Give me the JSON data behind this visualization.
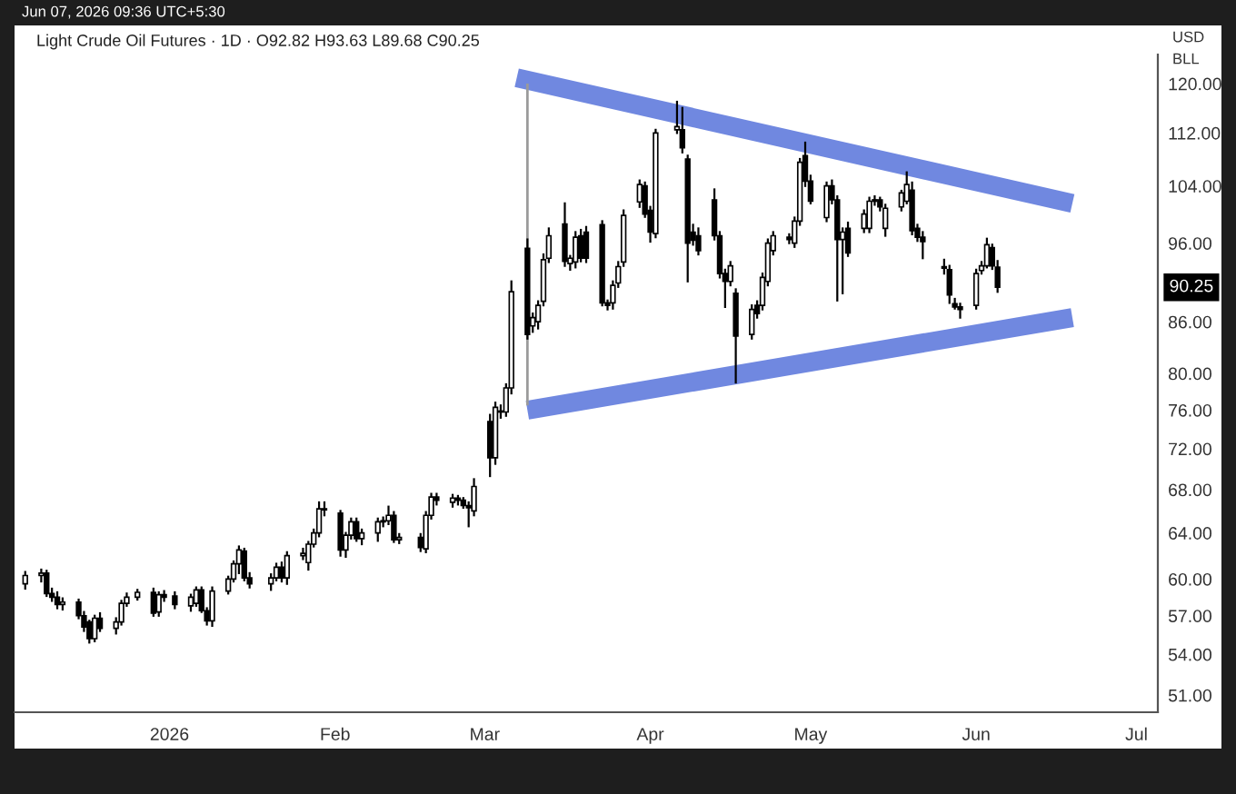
{
  "chart_data": {
    "type": "candlestick",
    "title": "Light Crude Oil Futures · 1D · O92.82 H93.63 L89.68 C90.25",
    "annotations": [
      "Jun 07, 2026 09:36 UTC+5:30",
      "USD",
      "BLL",
      "90.25"
    ],
    "x": [
      "2025-12-05",
      "2025-12-08",
      "2025-12-09",
      "2025-12-10",
      "2025-12-11",
      "2025-12-12",
      "2025-12-15",
      "2025-12-16",
      "2025-12-17",
      "2025-12-18",
      "2025-12-19",
      "2025-12-22",
      "2025-12-23",
      "2025-12-24",
      "2025-12-26",
      "2025-12-29",
      "2025-12-30",
      "2025-12-31",
      "2026-01-02",
      "2026-01-05",
      "2026-01-06",
      "2026-01-07",
      "2026-01-08",
      "2026-01-09",
      "2026-01-12",
      "2026-01-13",
      "2026-01-14",
      "2026-01-15",
      "2026-01-16",
      "2026-01-20",
      "2026-01-21",
      "2026-01-22",
      "2026-01-23",
      "2026-01-26",
      "2026-01-27",
      "2026-01-28",
      "2026-01-29",
      "2026-01-30",
      "2026-02-02",
      "2026-02-03",
      "2026-02-04",
      "2026-02-05",
      "2026-02-06",
      "2026-02-09",
      "2026-02-10",
      "2026-02-11",
      "2026-02-12",
      "2026-02-13",
      "2026-02-17",
      "2026-02-18",
      "2026-02-19",
      "2026-02-20",
      "2026-02-23",
      "2026-02-24",
      "2026-02-25",
      "2026-02-26",
      "2026-02-27",
      "2026-03-02",
      "2026-03-03",
      "2026-03-04",
      "2026-03-05",
      "2026-03-06",
      "2026-03-09",
      "2026-03-10",
      "2026-03-11",
      "2026-03-12",
      "2026-03-13",
      "2026-03-16",
      "2026-03-17",
      "2026-03-18",
      "2026-03-19",
      "2026-03-20",
      "2026-03-23",
      "2026-03-24",
      "2026-03-25",
      "2026-03-26",
      "2026-03-27",
      "2026-03-30",
      "2026-03-31",
      "2026-04-01",
      "2026-04-02",
      "2026-04-06",
      "2026-04-07",
      "2026-04-08",
      "2026-04-09",
      "2026-04-10",
      "2026-04-13",
      "2026-04-14",
      "2026-04-15",
      "2026-04-16",
      "2026-04-17",
      "2026-04-20",
      "2026-04-21",
      "2026-04-22",
      "2026-04-23",
      "2026-04-24",
      "2026-04-27",
      "2026-04-28",
      "2026-04-29",
      "2026-04-30",
      "2026-05-01",
      "2026-05-04",
      "2026-05-05",
      "2026-05-06",
      "2026-05-07",
      "2026-05-08",
      "2026-05-11",
      "2026-05-12",
      "2026-05-13",
      "2026-05-14",
      "2026-05-15",
      "2026-05-18",
      "2026-05-19",
      "2026-05-20",
      "2026-05-21",
      "2026-05-22",
      "2026-05-26",
      "2026-05-27",
      "2026-05-28",
      "2026-05-29",
      "2026-06-01",
      "2026-06-02",
      "2026-06-03",
      "2026-06-04",
      "2026-06-05"
    ],
    "ohlc": [
      [
        59.6,
        60.6,
        59.2,
        60.3
      ],
      [
        60.3,
        60.8,
        59.8,
        60.5
      ],
      [
        60.5,
        60.7,
        58.6,
        58.8
      ],
      [
        58.8,
        59.2,
        58.2,
        58.5
      ],
      [
        58.5,
        58.9,
        57.6,
        57.9
      ],
      [
        57.9,
        58.4,
        57.5,
        58.1
      ],
      [
        58.1,
        58.3,
        56.8,
        57.0
      ],
      [
        57.0,
        57.3,
        55.8,
        56.1
      ],
      [
        56.5,
        56.6,
        54.9,
        55.2
      ],
      [
        55.2,
        57.0,
        55.0,
        56.8
      ],
      [
        56.8,
        57.2,
        55.8,
        56.0
      ],
      [
        56.0,
        56.8,
        55.6,
        56.5
      ],
      [
        56.5,
        58.2,
        56.3,
        58.0
      ],
      [
        58.0,
        58.8,
        57.8,
        58.5
      ],
      [
        58.5,
        59.1,
        58.3,
        58.9
      ],
      [
        58.9,
        59.2,
        57.0,
        57.2
      ],
      [
        57.3,
        58.9,
        57.0,
        58.7
      ],
      [
        58.7,
        59.0,
        58.2,
        58.5
      ],
      [
        58.6,
        58.9,
        57.6,
        57.9
      ],
      [
        57.8,
        58.7,
        57.4,
        58.5
      ],
      [
        58.0,
        59.3,
        57.8,
        59.1
      ],
      [
        59.1,
        59.3,
        57.3,
        57.4
      ],
      [
        57.4,
        57.6,
        56.3,
        56.6
      ],
      [
        56.6,
        59.3,
        56.2,
        59.0
      ],
      [
        59.0,
        60.2,
        58.8,
        60.0
      ],
      [
        60.0,
        61.5,
        59.8,
        61.3
      ],
      [
        61.3,
        62.8,
        60.5,
        62.5
      ],
      [
        62.4,
        62.6,
        59.9,
        60.1
      ],
      [
        60.1,
        60.5,
        59.3,
        59.6
      ],
      [
        59.6,
        60.4,
        59.1,
        60.1
      ],
      [
        60.1,
        61.3,
        59.9,
        61.0
      ],
      [
        61.0,
        61.4,
        59.8,
        60.1
      ],
      [
        60.1,
        62.3,
        59.6,
        62.0
      ],
      [
        62.0,
        62.6,
        61.7,
        62.2
      ],
      [
        61.4,
        63.2,
        60.8,
        63.0
      ],
      [
        63.0,
        64.3,
        62.8,
        64.0
      ],
      [
        64.0,
        66.8,
        63.7,
        66.2
      ],
      [
        66.2,
        66.8,
        65.6,
        66.1
      ],
      [
        65.8,
        66.0,
        62.0,
        62.5
      ],
      [
        62.5,
        64.0,
        61.9,
        63.8
      ],
      [
        63.8,
        65.3,
        63.5,
        65.0
      ],
      [
        65.0,
        65.3,
        63.3,
        63.5
      ],
      [
        63.5,
        64.3,
        63.0,
        64.0
      ],
      [
        64.0,
        65.3,
        63.3,
        65.0
      ],
      [
        65.0,
        65.4,
        64.6,
        65.1
      ],
      [
        65.1,
        66.4,
        64.8,
        65.6
      ],
      [
        65.6,
        65.9,
        63.2,
        63.4
      ],
      [
        63.4,
        63.9,
        63.1,
        63.6
      ],
      [
        63.6,
        63.9,
        62.4,
        62.7
      ],
      [
        62.6,
        65.9,
        62.3,
        65.6
      ],
      [
        65.6,
        67.6,
        65.3,
        67.3
      ],
      [
        67.3,
        67.6,
        66.6,
        67.0
      ],
      [
        66.8,
        67.5,
        66.4,
        67.2
      ],
      [
        67.2,
        67.4,
        66.6,
        67.0
      ],
      [
        67.0,
        67.2,
        66.3,
        66.5
      ],
      [
        66.5,
        66.8,
        64.6,
        66.3
      ],
      [
        66.0,
        69.0,
        65.6,
        68.3
      ],
      [
        74.8,
        75.5,
        69.3,
        71.1
      ],
      [
        71.1,
        76.8,
        70.5,
        76.3
      ],
      [
        75.8,
        76.5,
        75.2,
        75.9
      ],
      [
        75.8,
        78.8,
        75.4,
        78.4
      ],
      [
        78.4,
        91.0,
        77.8,
        89.7
      ],
      [
        95.3,
        96.5,
        84.0,
        84.5
      ],
      [
        85.5,
        87.0,
        84.8,
        86.5
      ],
      [
        86.0,
        88.5,
        85.2,
        88.0
      ],
      [
        88.5,
        94.5,
        88.0,
        93.8
      ],
      [
        94.0,
        98.0,
        93.5,
        97.0
      ],
      [
        98.6,
        101.5,
        93.0,
        93.6
      ],
      [
        93.3,
        94.3,
        92.5,
        94.0
      ],
      [
        93.5,
        97.5,
        92.8,
        96.8
      ],
      [
        97.0,
        97.8,
        93.6,
        94.0
      ],
      [
        97.5,
        98.2,
        93.5,
        94.0
      ],
      [
        98.5,
        99.0,
        88.0,
        88.3
      ],
      [
        88.3,
        88.6,
        87.5,
        88.0
      ],
      [
        88.3,
        91.0,
        87.6,
        90.5
      ],
      [
        90.8,
        93.5,
        90.3,
        92.9
      ],
      [
        93.5,
        100.5,
        93.0,
        99.8
      ],
      [
        101.7,
        104.8,
        101.0,
        104.2
      ],
      [
        104.0,
        104.5,
        99.6,
        100.0
      ],
      [
        100.5,
        101.0,
        96.2,
        97.5
      ],
      [
        97.3,
        112.5,
        96.8,
        112.0
      ],
      [
        112.5,
        117.0,
        112.0,
        113.0
      ],
      [
        112.5,
        116.0,
        109.0,
        109.7
      ],
      [
        108.0,
        108.5,
        91.0,
        96.0
      ],
      [
        97.5,
        98.5,
        95.8,
        96.4
      ],
      [
        97.0,
        98.0,
        94.5,
        95.0
      ],
      [
        102.0,
        103.5,
        96.5,
        97.0
      ],
      [
        97.0,
        97.5,
        91.5,
        92.0
      ],
      [
        92.0,
        92.5,
        87.8,
        91.0
      ],
      [
        91.0,
        93.5,
        90.5,
        93.0
      ],
      [
        89.5,
        90.0,
        79.0,
        84.3
      ],
      [
        84.5,
        88.0,
        84.0,
        87.5
      ],
      [
        88.0,
        88.5,
        86.5,
        87.0
      ],
      [
        88.0,
        92.0,
        87.5,
        91.5
      ],
      [
        91.0,
        96.5,
        90.5,
        96.0
      ],
      [
        95.0,
        97.5,
        94.5,
        97.0
      ],
      [
        96.8,
        97.2,
        96.0,
        96.5
      ],
      [
        96.0,
        99.5,
        95.5,
        99.0
      ],
      [
        99.0,
        108.0,
        98.5,
        107.5
      ],
      [
        108.5,
        110.5,
        104.0,
        104.7
      ],
      [
        104.7,
        105.5,
        101.5,
        101.8
      ],
      [
        99.5,
        104.5,
        99.0,
        104.0
      ],
      [
        104.0,
        104.8,
        101.5,
        102.0
      ],
      [
        102.0,
        102.5,
        88.6,
        96.5
      ],
      [
        96.5,
        98.0,
        89.5,
        97.5
      ],
      [
        98.0,
        98.8,
        94.3,
        94.7
      ],
      [
        98.0,
        100.5,
        97.5,
        100.0
      ],
      [
        98.0,
        102.3,
        97.5,
        101.8
      ],
      [
        101.8,
        102.5,
        101.3,
        102.0
      ],
      [
        102.0,
        102.3,
        100.5,
        101.0
      ],
      [
        98.0,
        101.3,
        97.0,
        100.8
      ],
      [
        101.0,
        103.3,
        100.5,
        103.0
      ],
      [
        101.8,
        106.0,
        101.5,
        104.2
      ],
      [
        103.4,
        104.5,
        97.2,
        97.7
      ],
      [
        98.0,
        98.5,
        96.3,
        96.8
      ],
      [
        96.8,
        97.5,
        94.0,
        96.2
      ],
      [
        92.9,
        93.8,
        92.0,
        92.7
      ],
      [
        92.5,
        93.0,
        88.3,
        89.3
      ],
      [
        88.2,
        88.8,
        87.6,
        87.8
      ],
      [
        87.8,
        88.2,
        86.5,
        87.5
      ],
      [
        88.0,
        92.5,
        87.6,
        92.0
      ],
      [
        92.4,
        93.5,
        92.0,
        93.0
      ],
      [
        93.0,
        96.6,
        92.8,
        95.8
      ],
      [
        95.4,
        95.8,
        92.6,
        93.0
      ],
      [
        92.82,
        93.63,
        89.68,
        90.25
      ]
    ],
    "series": [
      {
        "type": "line",
        "color": "#7088e0",
        "x": [
          "2026-03-07",
          "2026-06-19"
        ],
        "values": [
          121,
          101.5
        ]
      },
      {
        "type": "line",
        "color": "#7088e0",
        "x": [
          "2026-03-09",
          "2026-06-19"
        ],
        "values": [
          76.0,
          86.5
        ]
      },
      {
        "type": "line",
        "color": "#9a9a9a",
        "x": [
          "2026-03-09",
          "2026-03-09"
        ],
        "values": [
          120,
          76.5
        ]
      }
    ],
    "log": "y",
    "xlim": [
      "2025-12-03",
      "2026-07-05"
    ],
    "xticks": [
      {
        "value": "2026-01-01",
        "label": "2026"
      },
      {
        "value": "2026-02-01",
        "label": "Feb"
      },
      {
        "value": "2026-03-01",
        "label": "Mar"
      },
      {
        "value": "2026-04-01",
        "label": "Apr"
      },
      {
        "value": "2026-05-01",
        "label": "May"
      },
      {
        "value": "2026-06-01",
        "label": "Jun"
      },
      {
        "value": "2026-07-01",
        "label": "Jul"
      }
    ],
    "ylim": [
      49.8,
      125
    ],
    "yticks": [
      {
        "value": 51,
        "label": "51.00"
      },
      {
        "value": 54,
        "label": "54.00"
      },
      {
        "value": 57,
        "label": "57.00"
      },
      {
        "value": 60,
        "label": "60.00"
      },
      {
        "value": 64,
        "label": "64.00"
      },
      {
        "value": 68,
        "label": "68.00"
      },
      {
        "value": 72,
        "label": "72.00"
      },
      {
        "value": 76,
        "label": "76.00"
      },
      {
        "value": 80,
        "label": "80.00"
      },
      {
        "value": 86,
        "label": "86.00"
      },
      {
        "value": 96,
        "label": "96.00"
      },
      {
        "value": 104,
        "label": "104.00"
      },
      {
        "value": 112,
        "label": "112.00"
      },
      {
        "value": 120,
        "label": "120.00"
      }
    ],
    "grid": false,
    "legend": false
  }
}
